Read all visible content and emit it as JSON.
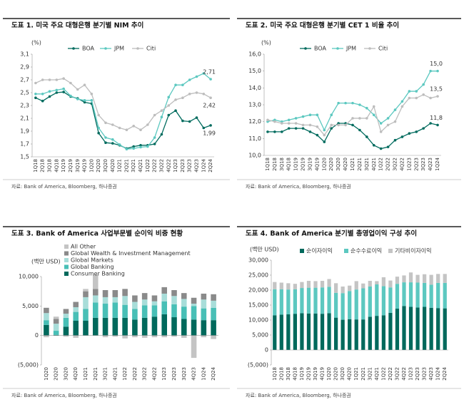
{
  "chart_data": [
    {
      "type": "line",
      "title": "도표 1. 미국 주요 대형은행 분기별 NIM 추이",
      "unit": "(%)",
      "source": "자료: Bank of America, Bloomberg, 하나증권",
      "categories": [
        "1Q18",
        "2Q18",
        "3Q18",
        "4Q18",
        "1Q19",
        "2Q19",
        "3Q19",
        "4Q19",
        "1Q20",
        "2Q20",
        "3Q20",
        "4Q20",
        "1Q21",
        "2Q21",
        "3Q21",
        "4Q21",
        "1Q22",
        "2Q22",
        "3Q22",
        "4Q22",
        "1Q23",
        "2Q23",
        "3Q23",
        "4Q23",
        "1Q24",
        "2Q24"
      ],
      "ylim": [
        1.5,
        3.1
      ],
      "yticks": [
        {
          "value": 1.5,
          "label": "1,5"
        },
        {
          "value": 1.7,
          "label": "1,7"
        },
        {
          "value": 1.9,
          "label": "1,9"
        },
        {
          "value": 2.1,
          "label": "2,1"
        },
        {
          "value": 2.3,
          "label": "2,3"
        },
        {
          "value": 2.5,
          "label": "2,5"
        },
        {
          "value": 2.7,
          "label": "2,7"
        },
        {
          "value": 2.9,
          "label": "2,9"
        },
        {
          "value": 3.1,
          "label": "3,1"
        }
      ],
      "series": [
        {
          "name": "BOA",
          "color": "#006b5e",
          "end_label": "1,99",
          "values": [
            2.42,
            2.37,
            2.44,
            2.5,
            2.51,
            2.44,
            2.41,
            2.35,
            2.33,
            1.87,
            1.72,
            1.71,
            1.68,
            1.63,
            1.66,
            1.68,
            1.68,
            1.7,
            1.85,
            2.15,
            2.22,
            2.06,
            2.05,
            2.11,
            1.95,
            1.99
          ]
        },
        {
          "name": "JPM",
          "color": "#5cc8c0",
          "end_label": "2,71",
          "values": [
            2.48,
            2.48,
            2.52,
            2.54,
            2.56,
            2.45,
            2.4,
            2.38,
            2.38,
            1.95,
            1.8,
            1.77,
            1.69,
            1.62,
            1.63,
            1.65,
            1.66,
            1.8,
            2.12,
            2.43,
            2.62,
            2.62,
            2.7,
            2.75,
            2.8,
            2.71
          ]
        },
        {
          "name": "Citi",
          "color": "#bdbdbd",
          "end_label": "2,42",
          "values": [
            2.65,
            2.7,
            2.7,
            2.7,
            2.72,
            2.65,
            2.55,
            2.62,
            2.48,
            2.15,
            2.03,
            2.0,
            1.95,
            1.92,
            1.98,
            1.92,
            2.0,
            2.15,
            2.22,
            2.3,
            2.39,
            2.42,
            2.48,
            2.5,
            2.48,
            2.42
          ]
        }
      ]
    },
    {
      "type": "line",
      "title": "도표 2. 미국 주요 대형은행 분기별 CET 1 비율 추이",
      "unit": "(%)",
      "source": "자료: Bank of America, Bloomberg, 하나증권",
      "categories": [
        "1Q18",
        "2Q18",
        "3Q18",
        "4Q18",
        "1Q19",
        "2Q19",
        "3Q19",
        "4Q19",
        "1Q20",
        "2Q20",
        "3Q20",
        "4Q20",
        "1Q21",
        "2Q21",
        "3Q21",
        "4Q21",
        "1Q22",
        "2Q22",
        "3Q22",
        "4Q22",
        "1Q23",
        "2Q23",
        "3Q23",
        "4Q23",
        "1Q24"
      ],
      "ylim": [
        10,
        16
      ],
      "yticks": [
        {
          "value": 10,
          "label": "10,0"
        },
        {
          "value": 11,
          "label": "11,0"
        },
        {
          "value": 12,
          "label": "12,0"
        },
        {
          "value": 13,
          "label": "13,0"
        },
        {
          "value": 14,
          "label": "14,0"
        },
        {
          "value": 15,
          "label": "15,0"
        },
        {
          "value": 16,
          "label": "16,0"
        }
      ],
      "series": [
        {
          "name": "BOA",
          "color": "#006b5e",
          "end_label": "11,8",
          "values": [
            11.4,
            11.4,
            11.4,
            11.6,
            11.6,
            11.6,
            11.4,
            11.2,
            10.8,
            11.6,
            11.9,
            11.9,
            11.8,
            11.5,
            11.1,
            10.6,
            10.4,
            10.5,
            10.9,
            11.1,
            11.3,
            11.4,
            11.6,
            11.9,
            11.8
          ]
        },
        {
          "name": "JPM",
          "color": "#5cc8c0",
          "end_label": "15,0",
          "values": [
            12.0,
            12.1,
            12.0,
            12.1,
            12.2,
            12.3,
            12.4,
            12.4,
            11.5,
            12.4,
            13.1,
            13.1,
            13.1,
            13.0,
            12.8,
            12.4,
            11.9,
            12.2,
            12.7,
            13.2,
            13.8,
            13.8,
            14.2,
            15.0,
            15.0
          ]
        },
        {
          "name": "Citi",
          "color": "#bdbdbd",
          "end_label": "13,5",
          "values": [
            12.1,
            12.0,
            11.9,
            11.9,
            11.9,
            11.8,
            11.8,
            11.7,
            11.2,
            11.8,
            11.8,
            11.8,
            12.2,
            12.2,
            12.2,
            12.9,
            11.4,
            11.8,
            12.0,
            12.9,
            13.4,
            13.4,
            13.6,
            13.4,
            13.5
          ]
        }
      ]
    },
    {
      "type": "stacked_bar",
      "title": "도표 3. Bank of America 사업부문별 순이익 비중 현황",
      "unit": "(백만 USD)",
      "source": "자료: Bank of America, Bloomberg, 하나증권",
      "categories": [
        "1Q20",
        "2Q20",
        "3Q20",
        "4Q20",
        "1Q21",
        "2Q21",
        "3Q21",
        "4Q21",
        "1Q22",
        "2Q22",
        "3Q22",
        "4Q22",
        "1Q23",
        "2Q23",
        "3Q23",
        "4Q23",
        "1Q24",
        "2Q24"
      ],
      "ylim": [
        -5000,
        10000
      ],
      "yticks": [
        {
          "value": -5000,
          "label": "(5,000)"
        },
        0,
        {
          "value": 5000,
          "label": "5,000"
        },
        {
          "value": 10000,
          "label": "10,000"
        }
      ],
      "series": [
        {
          "name": "Consumer Banking",
          "color": "#00695c",
          "values": [
            1800,
            100,
            1500,
            2500,
            2500,
            3000,
            3000,
            3000,
            3000,
            2700,
            3000,
            3200,
            3600,
            3100,
            2800,
            2700,
            2600,
            2600
          ]
        },
        {
          "name": "Global Banking",
          "color": "#48bfb6",
          "values": [
            800,
            700,
            1500,
            1500,
            2000,
            2600,
            2400,
            2600,
            2200,
            1800,
            2100,
            1900,
            2200,
            2200,
            2100,
            2300,
            2000,
            2100
          ]
        },
        {
          "name": "Global Markets",
          "color": "#a8ddd9",
          "values": [
            1200,
            1200,
            700,
            800,
            2000,
            1200,
            1100,
            900,
            1500,
            1200,
            1000,
            700,
            1300,
            1400,
            1300,
            400,
            1500,
            1200
          ]
        },
        {
          "name": "Global Wealth & Investment Management",
          "color": "#8a8a8a",
          "values": [
            900,
            800,
            800,
            900,
            1000,
            1100,
            1200,
            1200,
            1200,
            1100,
            1100,
            1000,
            1100,
            1000,
            1000,
            1000,
            1000,
            1100
          ]
        },
        {
          "name": "All Other",
          "color": "#c4c4c4",
          "values": [
            -300,
            400,
            -200,
            -400,
            400,
            2400,
            -300,
            -200,
            -500,
            -300,
            -400,
            -300,
            -300,
            -200,
            -400,
            -3800,
            -300,
            -600
          ]
        }
      ]
    },
    {
      "type": "stacked_bar",
      "title": "도표 4. Bank of America 분기별 총영업이익 구성 추이",
      "unit": "(백만 USD)",
      "source": "자료: Bank of America, Bloomberg, 하나증권",
      "categories": [
        "1Q18",
        "2Q18",
        "3Q18",
        "4Q18",
        "1Q19",
        "2Q19",
        "3Q19",
        "4Q19",
        "1Q20",
        "2Q20",
        "3Q20",
        "4Q20",
        "1Q21",
        "2Q21",
        "3Q21",
        "4Q21",
        "1Q22",
        "2Q22",
        "3Q22",
        "4Q22",
        "1Q23",
        "2Q23",
        "3Q23",
        "4Q23",
        "1Q24",
        "2Q24"
      ],
      "ylim": [
        -5000,
        30000
      ],
      "yticks": [
        {
          "value": -5000,
          "label": "(5,000)"
        },
        0,
        {
          "value": 5000,
          "label": "5,000"
        },
        {
          "value": 10000,
          "label": "10,000"
        },
        {
          "value": 15000,
          "label": "15,000"
        },
        {
          "value": 20000,
          "label": "20,000"
        },
        {
          "value": 25000,
          "label": "25,000"
        },
        {
          "value": 30000,
          "label": "30,000"
        }
      ],
      "series": [
        {
          "name": "순이자이익",
          "color": "#00695c",
          "values": [
            11600,
            11800,
            11900,
            12100,
            12300,
            12200,
            12200,
            12100,
            12300,
            10800,
            10100,
            10300,
            10200,
            10200,
            11100,
            11400,
            11600,
            12400,
            13800,
            14700,
            14400,
            14200,
            14400,
            14100,
            14000,
            13900
          ]
        },
        {
          "name": "순수수료이익",
          "color": "#5cc8c0",
          "values": [
            8700,
            8500,
            8300,
            8200,
            8400,
            8600,
            8600,
            8800,
            8800,
            8300,
            8900,
            9400,
            10000,
            10400,
            10100,
            10500,
            9700,
            8500,
            8300,
            7900,
            8200,
            8300,
            8000,
            7700,
            8400,
            8500
          ]
        },
        {
          "name": "기타비이자이익",
          "color": "#c4c4c4",
          "values": [
            2400,
            2200,
            2100,
            1800,
            2000,
            2300,
            2200,
            2200,
            2600,
            3200,
            2200,
            1800,
            2800,
            1600,
            1900,
            1100,
            3000,
            2300,
            2400,
            2300,
            3300,
            2600,
            2900,
            3300,
            3000,
            3000
          ]
        }
      ]
    }
  ]
}
